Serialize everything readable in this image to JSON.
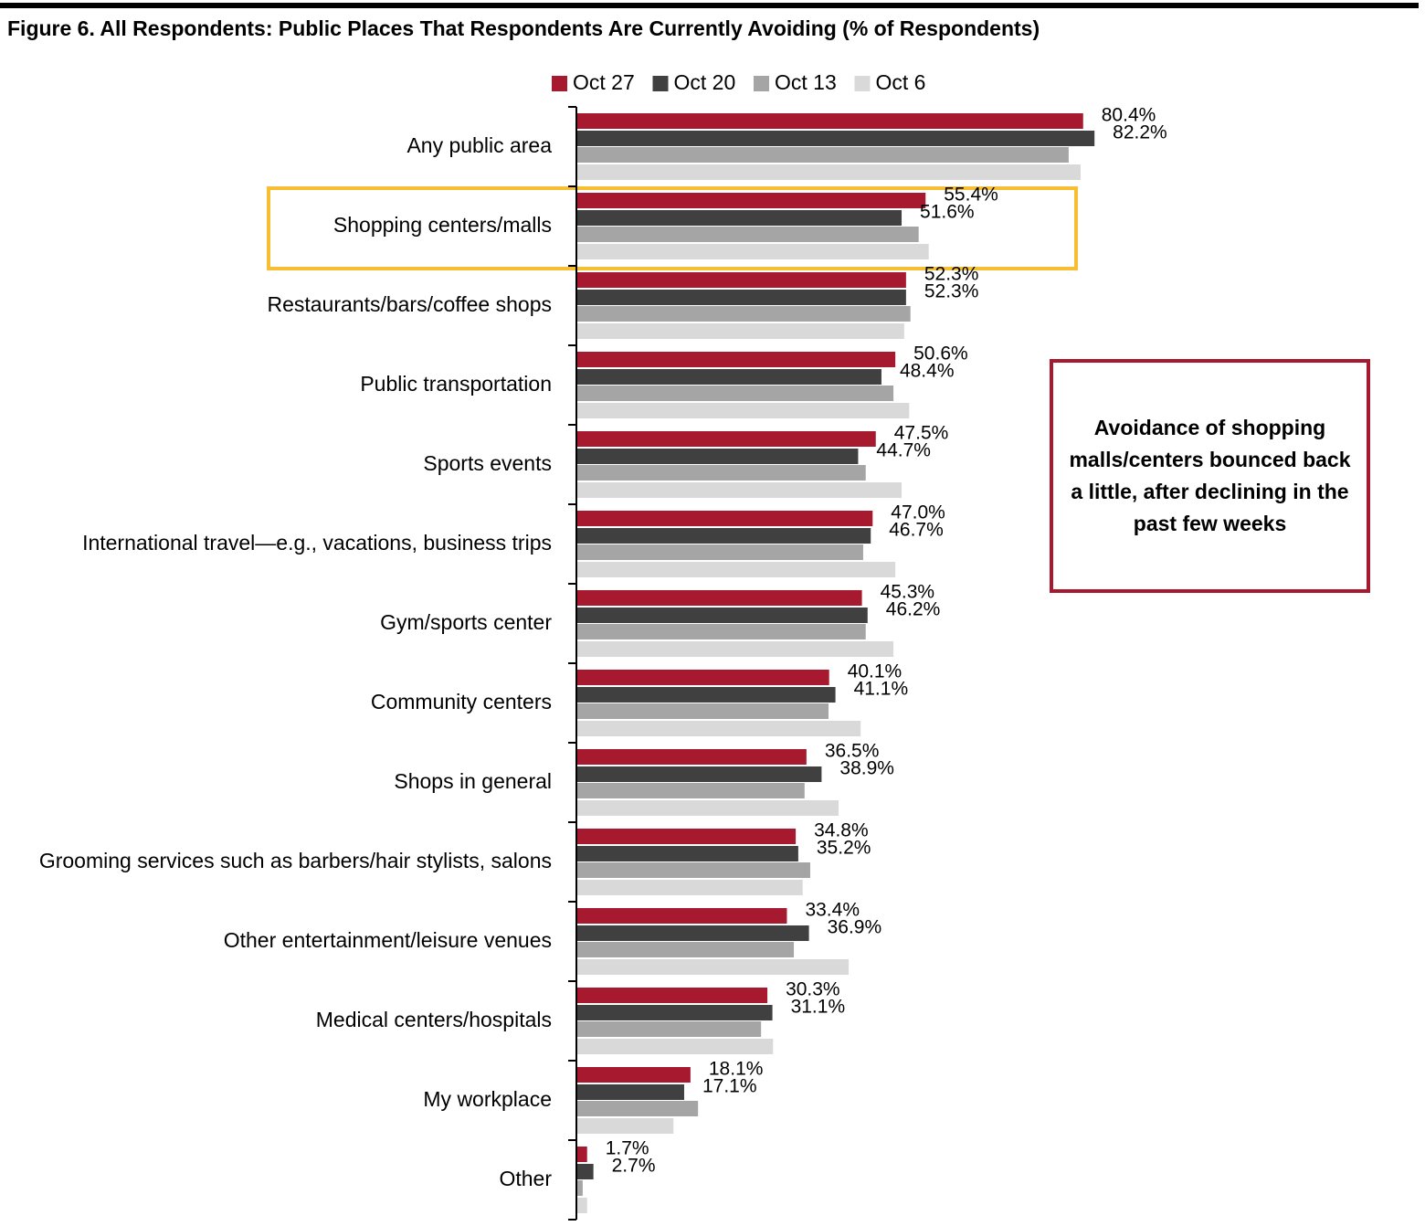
{
  "chart_data": {
    "type": "bar",
    "orientation": "horizontal",
    "title": "Figure 6. All Respondents: Public Places That Respondents Are Currently Avoiding (% of Respondents)",
    "categories": [
      "Any public area",
      "Shopping centers/malls",
      "Restaurants/bars/coffee shops",
      "Public transportation",
      "Sports events",
      "International travel—e.g., vacations, business trips",
      "Gym/sports center",
      "Community centers",
      "Shops in general",
      "Grooming services such as barbers/hair stylists, salons",
      "Other entertainment/leisure venues",
      "Medical centers/hospitals",
      "My workplace",
      "Other"
    ],
    "series": [
      {
        "name": "Oct 27",
        "color": "#a6192e",
        "values": [
          80.4,
          55.4,
          52.3,
          50.6,
          47.5,
          47.0,
          45.3,
          40.1,
          36.5,
          34.8,
          33.4,
          30.3,
          18.1,
          1.7
        ],
        "value_labels": [
          "80.4%",
          "55.4%",
          "52.3%",
          "50.6%",
          "47.5%",
          "47.0%",
          "45.3%",
          "40.1%",
          "36.5%",
          "34.8%",
          "33.4%",
          "30.3%",
          "18.1%",
          "1.7%"
        ]
      },
      {
        "name": "Oct 20",
        "color": "#404040",
        "values": [
          82.2,
          51.6,
          52.3,
          48.4,
          44.7,
          46.7,
          46.2,
          41.1,
          38.9,
          35.2,
          36.9,
          31.1,
          17.1,
          2.7
        ],
        "value_labels": [
          "82.2%",
          "51.6%",
          "52.3%",
          "48.4%",
          "44.7%",
          "46.7%",
          "46.2%",
          "41.1%",
          "38.9%",
          "35.2%",
          "36.9%",
          "31.1%",
          "17.1%",
          "2.7%"
        ]
      },
      {
        "name": "Oct 13",
        "color": "#a5a5a5",
        "values": [
          78.1,
          54.3,
          53.0,
          50.3,
          45.9,
          45.5,
          45.9,
          40.0,
          36.2,
          37.1,
          34.5,
          29.3,
          19.3,
          1.0
        ]
      },
      {
        "name": "Oct 6",
        "color": "#d9d9d9",
        "values": [
          80.0,
          55.9,
          52.0,
          52.8,
          51.6,
          50.6,
          50.3,
          45.1,
          41.6,
          35.9,
          43.2,
          31.2,
          15.4,
          1.7
        ]
      }
    ],
    "xlim": [
      0,
      100
    ],
    "highlight_category": 1,
    "annotation": "Avoidance of shopping malls/centers bounced back a little, after declining in the past few weeks"
  }
}
